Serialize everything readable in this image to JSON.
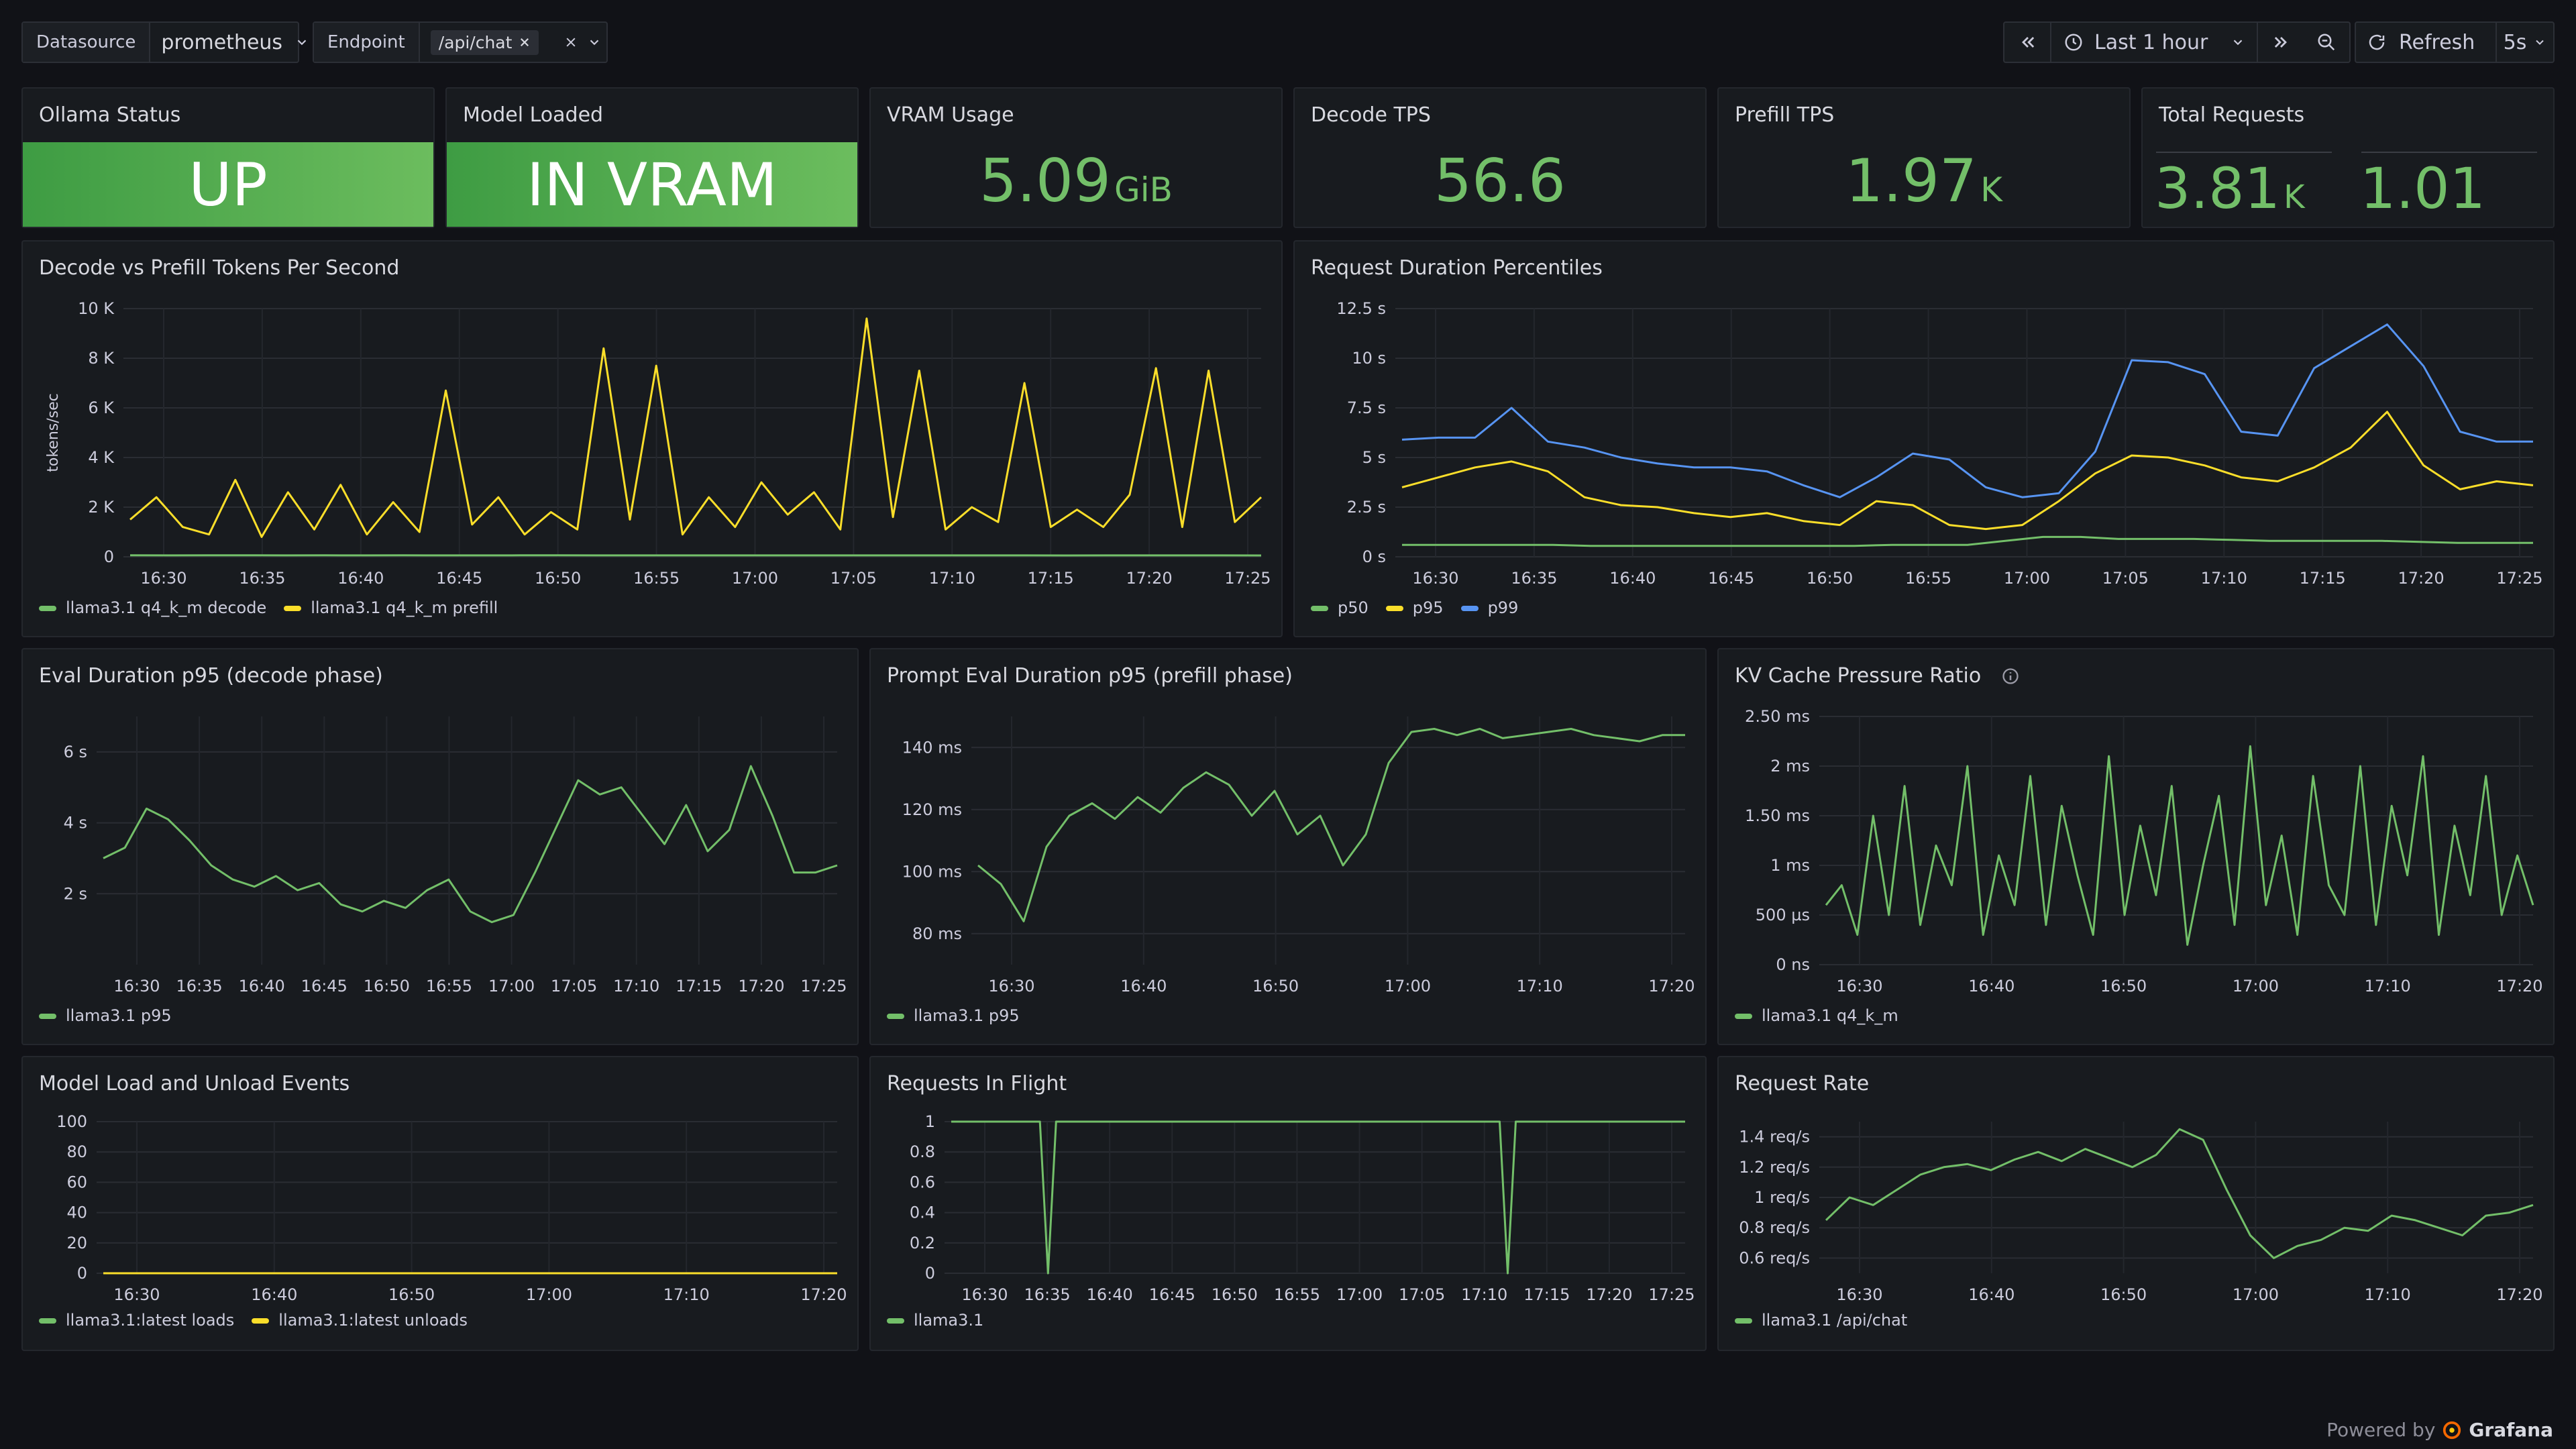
{
  "toolbar": {
    "datasource_label": "Datasource",
    "datasource_value": "prometheus",
    "endpoint_label": "Endpoint",
    "endpoint_chip": "/api/chat",
    "time_range": "Last 1 hour",
    "refresh_label": "Refresh",
    "refresh_interval": "5s"
  },
  "stats": {
    "ollama_status": {
      "title": "Ollama Status",
      "value": "UP"
    },
    "model_loaded": {
      "title": "Model Loaded",
      "value": "IN VRAM"
    },
    "vram": {
      "title": "VRAM Usage",
      "value": "5.09",
      "unit": "GiB"
    },
    "decode_tps": {
      "title": "Decode TPS",
      "value": "56.6"
    },
    "prefill_tps": {
      "title": "Prefill TPS",
      "value": "1.97",
      "unit": "K"
    },
    "total_requests": {
      "title": "Total Requests",
      "value1": "3.81",
      "unit1": "K",
      "value2": "1.01"
    }
  },
  "colors": {
    "green": "#73bf69",
    "yellow": "#fade2a",
    "blue": "#5794f2",
    "bg": "#111217",
    "panel": "#181b1f"
  },
  "chart_data": [
    {
      "id": "decode_prefill",
      "title": "Decode vs Prefill Tokens Per Second",
      "type": "line",
      "ylabel": "tokens/sec",
      "ylim": [
        0,
        10000
      ],
      "yticks": [
        "0",
        "2 K",
        "4 K",
        "6 K",
        "8 K",
        "10 K"
      ],
      "xticks": [
        "16:30",
        "16:35",
        "16:40",
        "16:45",
        "16:50",
        "16:55",
        "17:00",
        "17:05",
        "17:10",
        "17:15",
        "17:20",
        "17:25"
      ],
      "series": [
        {
          "name": "llama3.1 q4_k_m decode",
          "color": "#73bf69",
          "values": [
            60,
            58,
            59,
            61,
            57,
            60,
            58,
            59,
            57,
            58,
            60,
            59,
            57,
            58,
            56,
            57,
            58,
            57,
            56,
            57,
            58,
            56,
            57,
            56,
            55,
            57,
            56,
            57,
            56,
            55
          ]
        },
        {
          "name": "llama3.1 q4_k_m prefill",
          "color": "#fade2a",
          "values": [
            1500,
            2400,
            1200,
            900,
            3100,
            800,
            2600,
            1100,
            2900,
            900,
            2200,
            1000,
            6700,
            1300,
            2400,
            900,
            1800,
            1100,
            8400,
            1500,
            7700,
            900,
            2400,
            1200,
            3000,
            1700,
            2600,
            1100,
            9600,
            1600,
            7500,
            1100,
            2000,
            1400,
            7000,
            1200,
            1900,
            1200,
            2500,
            7600,
            1200,
            7500,
            1400,
            2400
          ]
        }
      ]
    },
    {
      "id": "duration_pct",
      "title": "Request Duration Percentiles",
      "type": "line",
      "ylim": [
        0,
        12.5
      ],
      "yticks": [
        "0 s",
        "2.5 s",
        "5 s",
        "7.5 s",
        "10 s",
        "12.5 s"
      ],
      "xticks": [
        "16:30",
        "16:35",
        "16:40",
        "16:45",
        "16:50",
        "16:55",
        "17:00",
        "17:05",
        "17:10",
        "17:15",
        "17:20",
        "17:25"
      ],
      "series": [
        {
          "name": "p50",
          "color": "#73bf69",
          "values": [
            0.6,
            0.6,
            0.6,
            0.6,
            0.6,
            0.55,
            0.55,
            0.55,
            0.55,
            0.55,
            0.55,
            0.55,
            0.55,
            0.6,
            0.6,
            0.6,
            0.8,
            1.0,
            1.0,
            0.9,
            0.9,
            0.9,
            0.85,
            0.8,
            0.8,
            0.8,
            0.8,
            0.75,
            0.7,
            0.7,
            0.7
          ]
        },
        {
          "name": "p95",
          "color": "#fade2a",
          "values": [
            3.5,
            4.0,
            4.5,
            4.8,
            4.3,
            3.0,
            2.6,
            2.5,
            2.2,
            2.0,
            2.2,
            1.8,
            1.6,
            2.8,
            2.6,
            1.6,
            1.4,
            1.6,
            2.8,
            4.2,
            5.1,
            5.0,
            4.6,
            4.0,
            3.8,
            4.5,
            5.5,
            7.3,
            4.6,
            3.4,
            3.8,
            3.6
          ]
        },
        {
          "name": "p99",
          "color": "#5794f2",
          "values": [
            5.9,
            6.0,
            6.0,
            7.5,
            5.8,
            5.5,
            5.0,
            4.7,
            4.5,
            4.5,
            4.3,
            3.6,
            3.0,
            4.0,
            5.2,
            4.9,
            3.5,
            3.0,
            3.2,
            5.3,
            9.9,
            9.8,
            9.2,
            6.3,
            6.1,
            9.5,
            10.6,
            11.7,
            9.6,
            6.3,
            5.8,
            5.8
          ]
        }
      ]
    },
    {
      "id": "eval_p95",
      "title": "Eval Duration p95 (decode phase)",
      "type": "line",
      "ylim": [
        0,
        7
      ],
      "yticks": [
        "2 s",
        "4 s",
        "6 s"
      ],
      "xticks": [
        "16:30",
        "16:35",
        "16:40",
        "16:45",
        "16:50",
        "16:55",
        "17:00",
        "17:05",
        "17:10",
        "17:15",
        "17:20",
        "17:25"
      ],
      "series": [
        {
          "name": "llama3.1 p95",
          "color": "#73bf69",
          "values": [
            3.0,
            3.3,
            4.4,
            4.1,
            3.5,
            2.8,
            2.4,
            2.2,
            2.5,
            2.1,
            2.3,
            1.7,
            1.5,
            1.8,
            1.6,
            2.1,
            2.4,
            1.5,
            1.2,
            1.4,
            2.6,
            3.9,
            5.2,
            4.8,
            5.0,
            4.2,
            3.4,
            4.5,
            3.2,
            3.8,
            5.6,
            4.2,
            2.6,
            2.6,
            2.8
          ]
        }
      ]
    },
    {
      "id": "prompt_eval_p95",
      "title": "Prompt Eval Duration p95 (prefill phase)",
      "type": "line",
      "ylim": [
        70,
        150
      ],
      "yticks": [
        "80 ms",
        "100 ms",
        "120 ms",
        "140 ms"
      ],
      "xticks": [
        "16:30",
        "16:40",
        "16:50",
        "17:00",
        "17:10",
        "17:20"
      ],
      "series": [
        {
          "name": "llama3.1 p95",
          "color": "#73bf69",
          "values": [
            102,
            96,
            84,
            108,
            118,
            122,
            117,
            124,
            119,
            127,
            132,
            128,
            118,
            126,
            112,
            118,
            102,
            112,
            135,
            145,
            146,
            144,
            146,
            143,
            144,
            145,
            146,
            144,
            143,
            142,
            144,
            144
          ]
        }
      ]
    },
    {
      "id": "kv_cache",
      "title": "KV Cache Pressure Ratio",
      "type": "line",
      "ylim": [
        0,
        2.5
      ],
      "yticks": [
        "0 ns",
        "500 µs",
        "1 ms",
        "1.50 ms",
        "2 ms",
        "2.50 ms"
      ],
      "xticks": [
        "16:30",
        "16:40",
        "16:50",
        "17:00",
        "17:10",
        "17:20"
      ],
      "series": [
        {
          "name": "llama3.1 q4_k_m",
          "color": "#73bf69",
          "values": [
            0.6,
            0.8,
            0.3,
            1.5,
            0.5,
            1.8,
            0.4,
            1.2,
            0.8,
            2.0,
            0.3,
            1.1,
            0.6,
            1.9,
            0.4,
            1.6,
            0.9,
            0.3,
            2.1,
            0.5,
            1.4,
            0.7,
            1.8,
            0.2,
            1.0,
            1.7,
            0.4,
            2.2,
            0.6,
            1.3,
            0.3,
            1.9,
            0.8,
            0.5,
            2.0,
            0.4,
            1.6,
            0.9,
            2.1,
            0.3,
            1.4,
            0.7,
            1.9,
            0.5,
            1.1,
            0.6
          ]
        }
      ]
    },
    {
      "id": "load_events",
      "title": "Model Load and Unload Events",
      "type": "line",
      "ylim": [
        0,
        100
      ],
      "yticks": [
        "0",
        "20",
        "40",
        "60",
        "80",
        "100"
      ],
      "xticks": [
        "16:30",
        "16:40",
        "16:50",
        "17:00",
        "17:10",
        "17:20"
      ],
      "series": [
        {
          "name": "llama3.1:latest loads",
          "color": "#73bf69",
          "values": [
            0,
            0,
            0,
            0,
            0,
            0,
            0,
            0,
            0,
            0
          ]
        },
        {
          "name": "llama3.1:latest unloads",
          "color": "#fade2a",
          "values": [
            0,
            0,
            0,
            0,
            0,
            0,
            0,
            0,
            0,
            0
          ]
        }
      ]
    },
    {
      "id": "in_flight",
      "title": "Requests In Flight",
      "type": "line",
      "ylim": [
        0,
        1
      ],
      "yticks": [
        "0",
        "0.2",
        "0.4",
        "0.6",
        "0.8",
        "1"
      ],
      "xticks": [
        "16:30",
        "16:35",
        "16:40",
        "16:45",
        "16:50",
        "16:55",
        "17:00",
        "17:05",
        "17:10",
        "17:15",
        "17:20",
        "17:25"
      ],
      "series": [
        {
          "name": "llama3.1",
          "color": "#73bf69",
          "values": [
            1,
            1,
            1,
            1,
            1,
            1,
            1,
            1,
            1,
            1,
            1,
            1,
            0,
            1,
            1,
            1,
            1,
            1,
            1,
            1,
            1,
            1,
            1,
            1,
            1,
            1,
            1,
            1,
            1,
            1,
            1,
            1,
            1,
            1,
            1,
            1,
            1,
            1,
            1,
            1,
            1,
            1,
            1,
            1,
            1,
            1,
            1,
            1,
            1,
            1,
            1,
            1,
            1,
            1,
            1,
            1,
            1,
            1,
            1,
            1,
            1,
            1,
            1,
            1,
            1,
            1,
            1,
            1,
            1,
            0,
            1,
            1,
            1,
            1,
            1,
            1,
            1,
            1,
            1,
            1,
            1,
            1,
            1,
            1,
            1,
            1,
            1,
            1,
            1,
            1,
            1,
            1
          ]
        }
      ]
    },
    {
      "id": "req_rate",
      "title": "Request Rate",
      "type": "line",
      "ylim": [
        0.5,
        1.5
      ],
      "yticks": [
        "0.6 req/s",
        "0.8 req/s",
        "1 req/s",
        "1.2 req/s",
        "1.4 req/s"
      ],
      "xticks": [
        "16:30",
        "16:40",
        "16:50",
        "17:00",
        "17:10",
        "17:20"
      ],
      "series": [
        {
          "name": "llama3.1 /api/chat",
          "color": "#73bf69",
          "values": [
            0.85,
            1.0,
            0.95,
            1.05,
            1.15,
            1.2,
            1.22,
            1.18,
            1.25,
            1.3,
            1.24,
            1.32,
            1.26,
            1.2,
            1.28,
            1.45,
            1.38,
            1.05,
            0.75,
            0.6,
            0.68,
            0.72,
            0.8,
            0.78,
            0.88,
            0.85,
            0.8,
            0.75,
            0.88,
            0.9,
            0.95
          ]
        }
      ]
    }
  ],
  "footer": {
    "powered_by": "Powered by",
    "brand": "Grafana"
  }
}
